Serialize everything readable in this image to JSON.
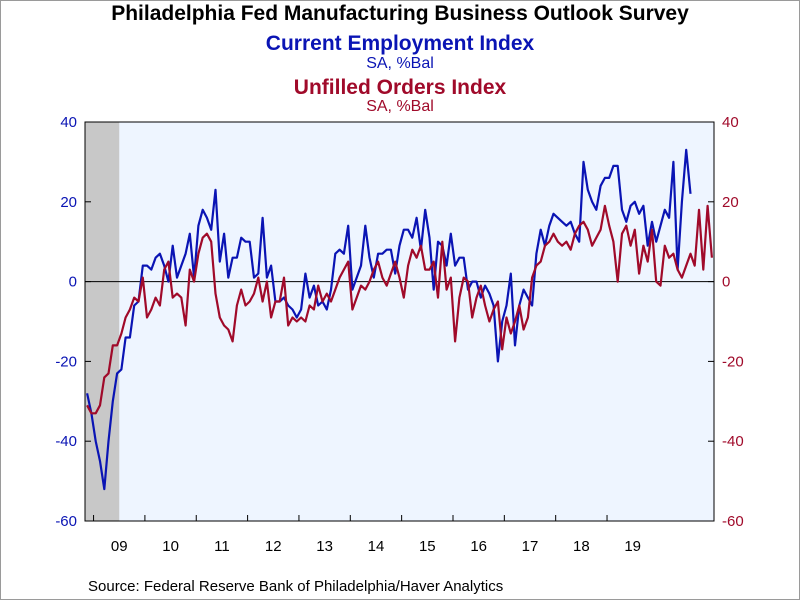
{
  "title": "Philadelphia Fed Manufacturing Business Outlook Survey",
  "source": "Source:  Federal Reserve Bank of Philadelphia/Haver Analytics",
  "colors": {
    "employment": "#0a14b4",
    "unfilled_orders": "#a00a2a",
    "plot_bg": "#eef5ff",
    "recession": "#c8c8c8"
  },
  "chart_data": {
    "type": "line",
    "title": "Philadelphia Fed Manufacturing Business Outlook Survey",
    "x_start": "2008-11",
    "frequency": "monthly",
    "x_ticks": [
      "09",
      "10",
      "11",
      "12",
      "13",
      "14",
      "15",
      "16",
      "17",
      "18",
      "19"
    ],
    "ylim": [
      -60,
      40
    ],
    "y_ticks": [
      -60,
      -40,
      -20,
      0,
      20,
      40
    ],
    "y_tick_labels": [
      "-60",
      "-40",
      "-20",
      "0",
      "20",
      "40"
    ],
    "shaded_period": [
      "2008-11",
      "2009-06"
    ],
    "zero_line": true,
    "series": [
      {
        "name": "Current Employment Index",
        "unit": "SA, %Bal",
        "axis": "left",
        "color": "#0a14b4",
        "values": [
          -28,
          -33,
          -40,
          -45,
          -52,
          -40,
          -30,
          -23,
          -22,
          -14,
          -14,
          -6,
          -5,
          4,
          4,
          3,
          6,
          7,
          4,
          0,
          9,
          1,
          4,
          7,
          12,
          1,
          14,
          18,
          16,
          13,
          23,
          5,
          12,
          1,
          6,
          6,
          11,
          10,
          10,
          1,
          2,
          16,
          1,
          4,
          -5,
          -5,
          -4,
          -6,
          -7,
          -9,
          -7,
          2,
          -4,
          -1,
          -6,
          -5,
          -7,
          -2,
          7,
          8,
          7,
          14,
          -2,
          1,
          4,
          14,
          6,
          1,
          7,
          7,
          8,
          8,
          2,
          9,
          13,
          13,
          11,
          16,
          8,
          18,
          11,
          -2,
          10,
          9,
          4,
          12,
          4,
          6,
          6,
          -2,
          0,
          0,
          -4,
          -1,
          -3,
          -6,
          -20,
          -10,
          -6,
          2,
          -16,
          -6,
          -2,
          -4,
          -6,
          7,
          13,
          9,
          14,
          17,
          16,
          15,
          14,
          15,
          12,
          10,
          30,
          23,
          20,
          18,
          24,
          26,
          26,
          29,
          29,
          18,
          15,
          19,
          20,
          17,
          19,
          9,
          15,
          10,
          14,
          18,
          16,
          30,
          3,
          20,
          33,
          22
        ]
      },
      {
        "name": "Unfilled Orders Index",
        "unit": "SA, %Bal",
        "axis": "right",
        "color": "#a00a2a",
        "values": [
          -31,
          -33,
          -33,
          -31,
          -24,
          -23,
          -16,
          -16,
          -13,
          -9,
          -7,
          -4,
          -5,
          1,
          -9,
          -7,
          -4,
          -6,
          3,
          5,
          -4,
          -3,
          -4,
          -11,
          3,
          0,
          7,
          11,
          12,
          10,
          -3,
          -9,
          -11,
          -12,
          -15,
          -6,
          -2,
          -6,
          -5,
          -3,
          1,
          -5,
          0,
          -9,
          -5,
          -5,
          1,
          -11,
          -9,
          -10,
          -9,
          -10,
          -6,
          -7,
          -1,
          -5,
          -3,
          -5,
          -2,
          1,
          3,
          5,
          -7,
          -4,
          -1,
          -2,
          0,
          3,
          5,
          1,
          -1,
          2,
          5,
          1,
          -4,
          4,
          8,
          6,
          9,
          3,
          3,
          5,
          -4,
          10,
          -2,
          1,
          -15,
          -4,
          1,
          0,
          -9,
          -4,
          -1,
          -6,
          -10,
          -7,
          -5,
          -17,
          -9,
          -13,
          -10,
          -6,
          -12,
          -9,
          1,
          4,
          5,
          9,
          10,
          12,
          10,
          9,
          10,
          8,
          12,
          14,
          15,
          13,
          9,
          11,
          13,
          19,
          14,
          10,
          0,
          12,
          14,
          9,
          13,
          2,
          9,
          5,
          13,
          0,
          -1,
          9,
          6,
          7,
          3,
          1,
          4,
          7,
          4,
          18,
          3,
          19,
          6
        ]
      }
    ]
  }
}
